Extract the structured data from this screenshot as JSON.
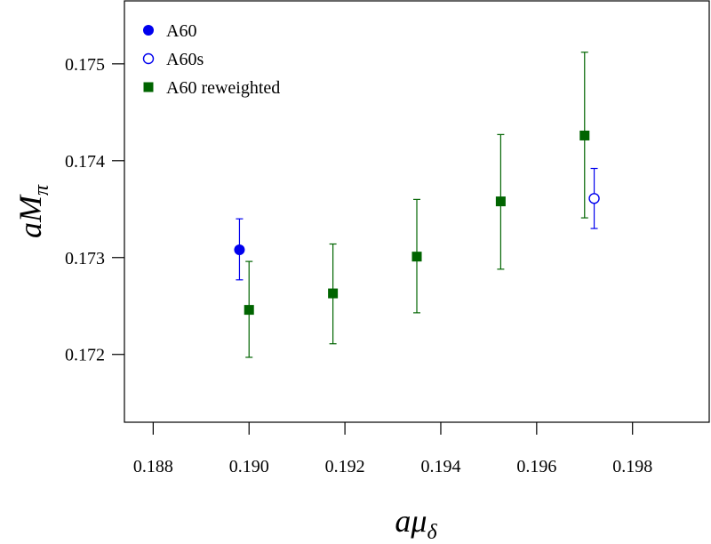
{
  "chart_data": {
    "type": "scatter",
    "xlabel_main": "aμ",
    "xlabel_sub": "δ",
    "ylabel_main": "aM",
    "ylabel_sub": "π",
    "xlim": [
      0.1874,
      0.1996
    ],
    "ylim": [
      0.1713,
      0.17565
    ],
    "xticks": [
      {
        "value": 0.188,
        "label": "0.188"
      },
      {
        "value": 0.19,
        "label": "0.190"
      },
      {
        "value": 0.192,
        "label": "0.192"
      },
      {
        "value": 0.194,
        "label": "0.194"
      },
      {
        "value": 0.196,
        "label": "0.196"
      },
      {
        "value": 0.198,
        "label": "0.198"
      }
    ],
    "yticks": [
      {
        "value": 0.172,
        "label": "0.172"
      },
      {
        "value": 0.173,
        "label": "0.173"
      },
      {
        "value": 0.174,
        "label": "0.174"
      },
      {
        "value": 0.175,
        "label": "0.175"
      }
    ],
    "legend_position": "top-left",
    "series": [
      {
        "name": "A60",
        "marker": "filled-circle",
        "color": "#0000ee",
        "points": [
          {
            "x": 0.1898,
            "y": 0.17308,
            "ylow": 0.17277,
            "yhigh": 0.1734
          }
        ]
      },
      {
        "name": "A60s",
        "marker": "open-circle",
        "color": "#0000ee",
        "points": [
          {
            "x": 0.1972,
            "y": 0.17361,
            "ylow": 0.1733,
            "yhigh": 0.17392
          }
        ]
      },
      {
        "name": "A60 reweighted",
        "marker": "filled-square",
        "color": "#006400",
        "points": [
          {
            "x": 0.19,
            "y": 0.17246,
            "ylow": 0.17197,
            "yhigh": 0.17296
          },
          {
            "x": 0.19175,
            "y": 0.17263,
            "ylow": 0.17211,
            "yhigh": 0.17314
          },
          {
            "x": 0.1935,
            "y": 0.17301,
            "ylow": 0.17243,
            "yhigh": 0.1736
          },
          {
            "x": 0.19525,
            "y": 0.17358,
            "ylow": 0.17288,
            "yhigh": 0.17427
          },
          {
            "x": 0.197,
            "y": 0.17426,
            "ylow": 0.17341,
            "yhigh": 0.17512
          }
        ]
      }
    ]
  }
}
